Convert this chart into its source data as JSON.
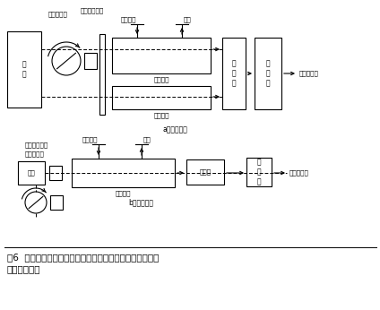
{
  "fig_width": 4.24,
  "fig_height": 3.46,
  "dpi": 100,
  "bg_color": "#ffffff",
  "title_line1": "図6  非分散形赤外線吸収法による大気中二酸化硫黄計測器",
  "title_line2": "　　の構成例",
  "section_a_label": "a）複光束形",
  "section_b_label": "b）単光束形",
  "label_kouten_sekuta_a": "回転セクタ",
  "label_kogaku_filter_a": "光学フィルタ",
  "label_shiryoga_a": "試料ガス",
  "label_haishutsu_a": "排出",
  "label_shiryosel_a": "試料セル",
  "label_hikakusel": "比較セル",
  "label_sokkobu_a": "測\n光\n部",
  "label_zoufukuki_a": "増\n幅\n器",
  "label_shijikirokukei_a": "指示記録計",
  "label_kougen_a": "光\n源",
  "label_kogaku_filter_b": "光学フィルタ",
  "label_kouten_sekuta_b": "回転セクタ",
  "label_shiryoga_b": "試料ガス",
  "label_haishutsu_b": "排出",
  "label_shiryosel_b": "試料セル",
  "label_sokkobu_b": "測光部",
  "label_zoufukuki_b": "増\n幅\n器",
  "label_shijikirokukei_b": "指示記録計",
  "label_kougen_b": "光源"
}
